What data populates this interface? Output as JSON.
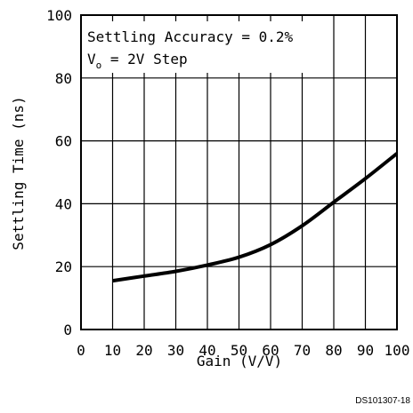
{
  "chart_data": {
    "type": "line",
    "xlabel": "Gain (V/V)",
    "ylabel": "Settling Time (ns)",
    "xlim": [
      0,
      100
    ],
    "ylim": [
      0,
      100
    ],
    "x_ticks": [
      0,
      10,
      20,
      30,
      40,
      50,
      60,
      70,
      80,
      90,
      100
    ],
    "y_ticks": [
      0,
      20,
      40,
      60,
      80,
      100
    ],
    "grid": true,
    "annotations": {
      "line1": "Settling Accuracy = 0.2%",
      "line2_main": "V",
      "line2_sub": "o",
      "line2_rest": " = 2V Step"
    },
    "series": [
      {
        "x": [
          10,
          20,
          30,
          40,
          50,
          60,
          70,
          80,
          90,
          100
        ],
        "y": [
          15.5,
          17,
          18.5,
          20.5,
          23,
          27,
          33,
          40.5,
          48,
          56
        ]
      }
    ],
    "colors": {
      "line": "#000000",
      "grid": "#000000"
    }
  },
  "doc_id": "DS101307-18"
}
